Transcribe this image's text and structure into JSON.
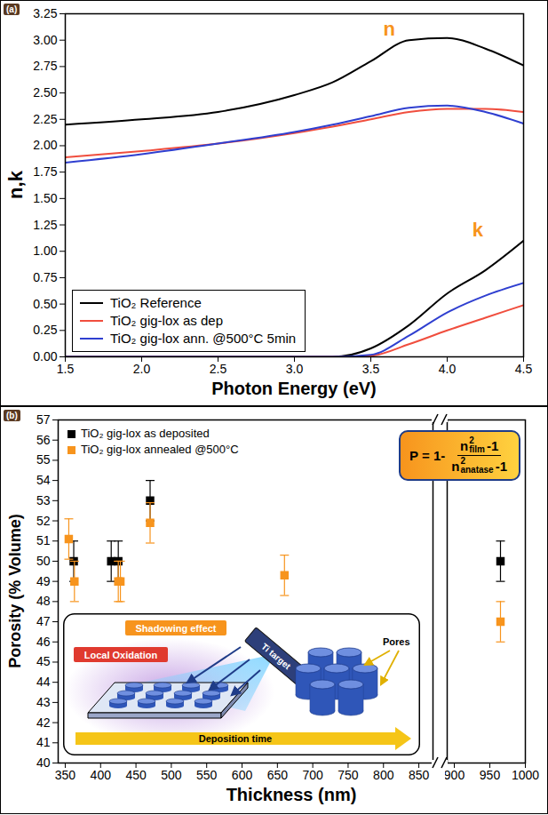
{
  "chart_data": [
    {
      "type": "line",
      "panel_label": "(a)",
      "x_label": "Photon Energy (eV)",
      "y_label": "n,k",
      "x": [
        1.5,
        2.0,
        2.5,
        3.0,
        3.25,
        3.5,
        3.75,
        4.0,
        4.25,
        4.5
      ],
      "series": [
        {
          "name": "TiO₂ Reference",
          "color": "#000000",
          "n": [
            2.2,
            2.25,
            2.32,
            2.48,
            2.6,
            2.8,
            3.0,
            3.02,
            2.92,
            2.76
          ],
          "k": [
            0,
            0,
            0,
            0,
            0,
            0.08,
            0.3,
            0.6,
            0.82,
            1.1
          ]
        },
        {
          "name": "TiO₂ gig-lox as dep",
          "color": "#f04e3e",
          "n": [
            1.89,
            1.95,
            2.02,
            2.12,
            2.18,
            2.25,
            2.32,
            2.35,
            2.35,
            2.32
          ],
          "k": [
            0,
            0,
            0,
            0,
            0,
            0.01,
            0.12,
            0.25,
            0.37,
            0.49
          ]
        },
        {
          "name": "TiO₂ gig-lox ann. @500°C 5min",
          "color": "#2f3fd0",
          "n": [
            1.84,
            1.92,
            2.02,
            2.13,
            2.2,
            2.28,
            2.36,
            2.38,
            2.32,
            2.21
          ],
          "k": [
            0,
            0,
            0,
            0,
            0,
            0.02,
            0.2,
            0.42,
            0.58,
            0.7
          ]
        }
      ],
      "annotations": [
        {
          "text": "n",
          "x": 3.62,
          "y": 3.1,
          "color": "#f7941d"
        },
        {
          "text": "k",
          "x": 4.2,
          "y": 1.2,
          "color": "#f7941d"
        }
      ],
      "xlim": [
        1.5,
        4.5
      ],
      "xticks": [
        1.5,
        {
          "value": 2,
          "label": "2.0"
        },
        2.5,
        {
          "value": 3,
          "label": "3.0"
        },
        3.5,
        {
          "value": 4,
          "label": "4.0"
        },
        4.5
      ],
      "ylim": [
        0,
        3.25
      ],
      "yticks": [
        {
          "value": 0,
          "label": "0.00"
        },
        0.25,
        {
          "value": 0.5,
          "label": "0.50"
        },
        0.75,
        {
          "value": 1,
          "label": "1.00"
        },
        1.25,
        {
          "value": 1.5,
          "label": "1.50"
        },
        1.75,
        {
          "value": 2,
          "label": "2.00"
        },
        2.25,
        {
          "value": 2.5,
          "label": "2.50"
        },
        2.75,
        {
          "value": 3,
          "label": "3.00"
        },
        3.25
      ],
      "legend": "lower left"
    },
    {
      "type": "scatter",
      "panel_label": "(b)",
      "x_label": "Thickness (nm)",
      "y_label": "Porosity (% Volume)",
      "series": [
        {
          "name": "TiO₂ gig-lox as deposited",
          "color": "#000000",
          "marker": "square",
          "x": [
            362,
            415,
            425,
            470,
            965
          ],
          "values": [
            50,
            50,
            50,
            53,
            50
          ],
          "errors": [
            1,
            1,
            1,
            1,
            1
          ]
        },
        {
          "name": "TiO₂ gig-lox annealed @500°C",
          "color": "#f7941d",
          "marker": "square",
          "x": [
            355,
            363,
            425,
            428,
            470,
            660,
            965
          ],
          "values": [
            51.1,
            49,
            49,
            49,
            51.9,
            49.3,
            47
          ],
          "errors": [
            1,
            1,
            1,
            1,
            1,
            1,
            1
          ]
        }
      ],
      "xlim": [
        340,
        1000
      ],
      "x_break": [
        870,
        890
      ],
      "xticks": [
        350,
        400,
        450,
        500,
        550,
        600,
        650,
        700,
        750,
        800,
        850,
        900,
        950,
        1000
      ],
      "ylim": [
        40,
        57
      ],
      "yticks": [
        40,
        41,
        42,
        43,
        44,
        45,
        46,
        47,
        48,
        49,
        50,
        51,
        52,
        53,
        54,
        55,
        56,
        57
      ],
      "legend": "upper left",
      "formula": {
        "prefix": "P = 1-",
        "numerator": {
          "base": "n",
          "sup": "2",
          "sub": "film",
          "tail": "-1"
        },
        "denominator": {
          "base": "n",
          "sup": "2",
          "sub": "anatase",
          "tail": "-1"
        }
      },
      "inset": {
        "shadowing": "Shadowing effect",
        "oxidation": "Local Oxidation",
        "target": "Ti target",
        "pores": "Pores",
        "time": "Deposition time"
      }
    }
  ]
}
